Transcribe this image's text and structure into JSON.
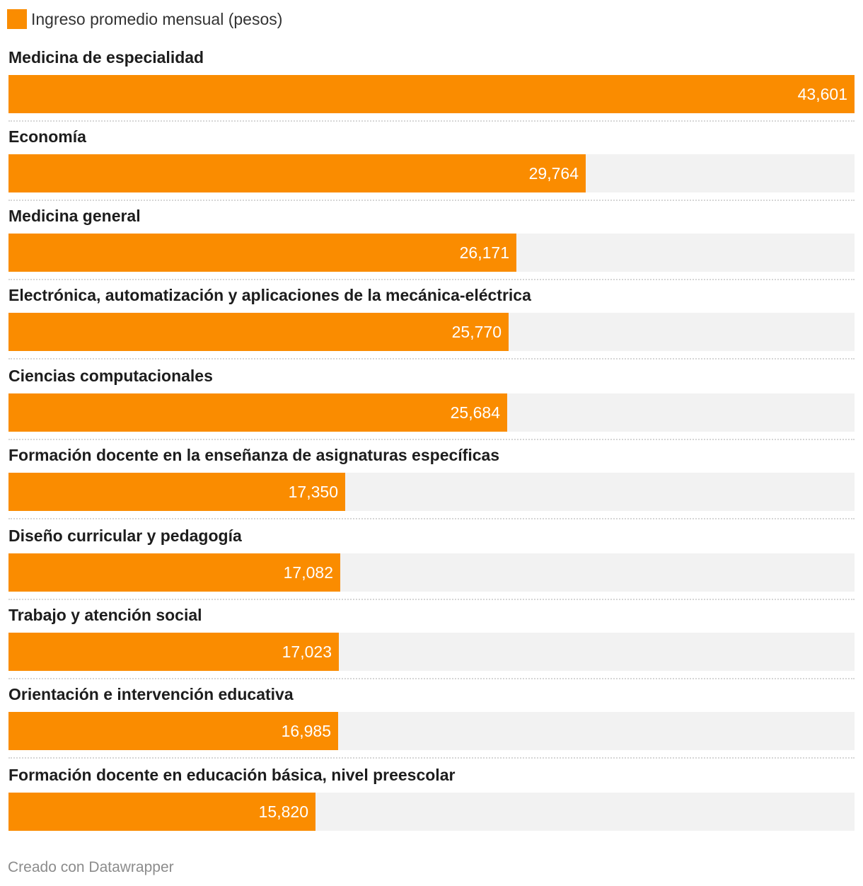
{
  "chart_data": {
    "type": "bar",
    "orientation": "horizontal",
    "legend": {
      "label": "Ingreso promedio mensual (pesos)",
      "color": "#fa8c00",
      "placement": "top-left"
    },
    "categories": [
      "Medicina de especialidad",
      "Economía",
      "Medicina general",
      "Electrónica, automatización y aplicaciones de la mecánica-eléctrica",
      "Ciencias computacionales",
      "Formación docente en la enseñanza de asignaturas específicas",
      "Diseño curricular y pedagogía",
      "Trabajo y atención social",
      "Orientación e intervención educativa",
      "Formación docente en educación básica, nivel preescolar"
    ],
    "series": [
      {
        "name": "Ingreso promedio mensual (pesos)",
        "values": [
          43601,
          29764,
          26171,
          25770,
          25684,
          17350,
          17082,
          17023,
          16985,
          15820
        ],
        "labels": [
          "43,601",
          "29,764",
          "26,171",
          "25,770",
          "25,684",
          "17,350",
          "17,082",
          "17,023",
          "16,985",
          "15,820"
        ]
      }
    ],
    "xlim": [
      0,
      43601
    ],
    "bar_color": "#fa8c00",
    "track_color": "#f2f2f2",
    "grid": false
  },
  "footer": {
    "credit": "Creado con Datawrapper"
  }
}
